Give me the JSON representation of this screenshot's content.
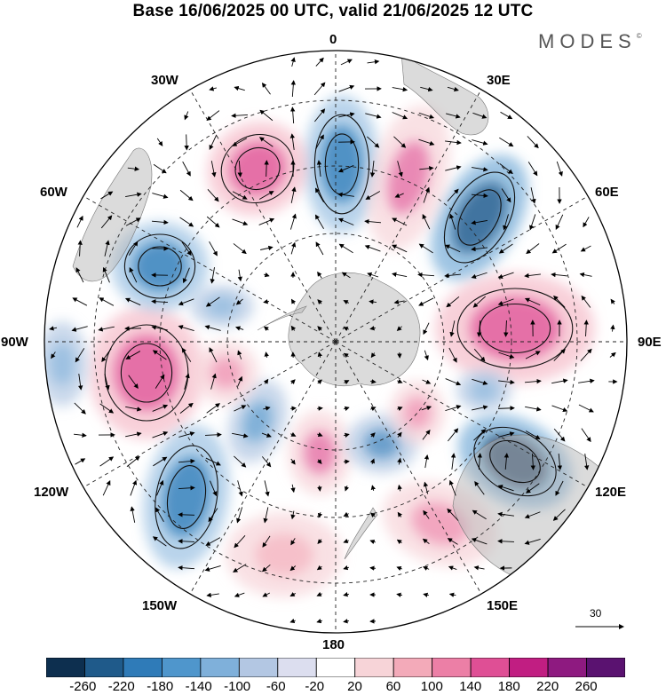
{
  "title": "Base 16/06/2025 00 UTC, valid 21/06/2025 12 UTC",
  "brand": "MODES",
  "brand_mark": "©",
  "map": {
    "projection": "south-polar-stereographic",
    "longitude_labels": [
      {
        "id": "0",
        "text": "0"
      },
      {
        "id": "30E",
        "text": "30E"
      },
      {
        "id": "60E",
        "text": "60E"
      },
      {
        "id": "90E",
        "text": "90E"
      },
      {
        "id": "120E",
        "text": "120E"
      },
      {
        "id": "150E",
        "text": "150E"
      },
      {
        "id": "180",
        "text": "180"
      },
      {
        "id": "150W",
        "text": "150W"
      },
      {
        "id": "120W",
        "text": "120W"
      },
      {
        "id": "90W",
        "text": "90W"
      },
      {
        "id": "60W",
        "text": "60W"
      },
      {
        "id": "30W",
        "text": "30W"
      }
    ],
    "anomaly_centers": [
      {
        "name": "atlantic-low",
        "sign": "negative",
        "magnitude": 180
      },
      {
        "name": "indian-low",
        "sign": "negative",
        "magnitude": 220
      },
      {
        "name": "indian-high",
        "sign": "positive",
        "magnitude": 180
      },
      {
        "name": "australia-low",
        "sign": "negative",
        "magnitude": 260
      },
      {
        "name": "pacific-high",
        "sign": "positive",
        "magnitude": 180
      },
      {
        "name": "drake-low",
        "sign": "negative",
        "magnitude": 180
      },
      {
        "name": "amundsen-high",
        "sign": "positive",
        "magnitude": 180
      },
      {
        "name": "ross-low",
        "sign": "negative",
        "magnitude": 180
      }
    ]
  },
  "vector_reference": {
    "label": "30"
  },
  "colorbar": {
    "ticks": [
      "-260",
      "-220",
      "-180",
      "-140",
      "-100",
      "-60",
      "-20",
      "20",
      "60",
      "100",
      "140",
      "180",
      "220",
      "260"
    ],
    "colors": [
      "#0d2f4f",
      "#1f5a8a",
      "#2f7bb8",
      "#4f96cc",
      "#7fb0da",
      "#b3c7e3",
      "#dcdeef",
      "#ffffff",
      "#f7d4d8",
      "#f3aab9",
      "#ec7fa6",
      "#df4f95",
      "#c11e82",
      "#8e1a80",
      "#5a1270"
    ]
  }
}
